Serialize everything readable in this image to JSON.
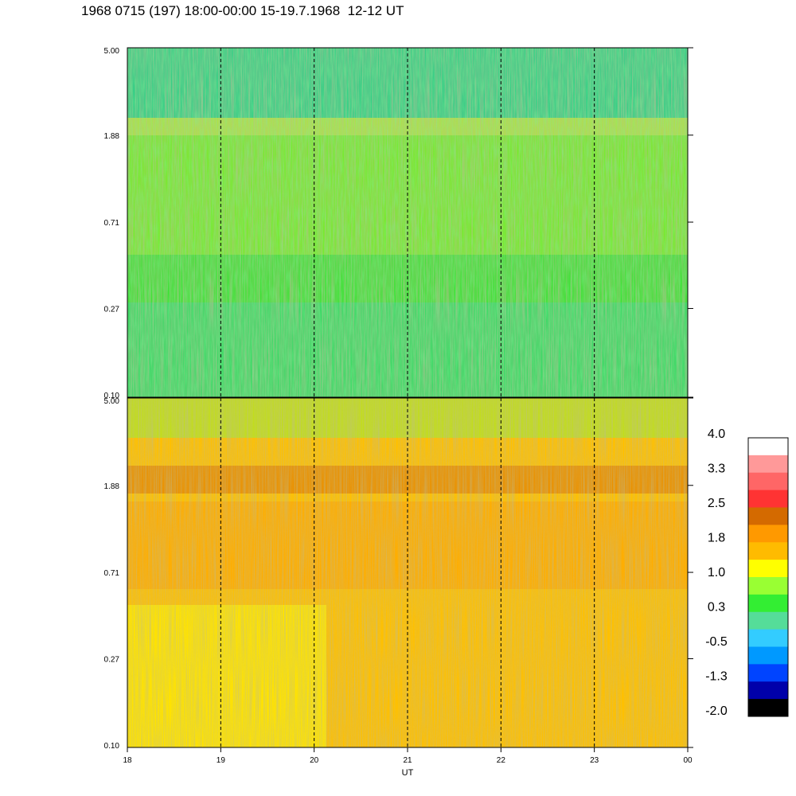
{
  "chart_data": {
    "type": "heatmap",
    "title": "1968 0715 (197) 18:00-00:00 15-19.7.1968  12-12 UT",
    "xlabel": "UT",
    "x_ticks": [
      "18",
      "19",
      "20",
      "21",
      "22",
      "23",
      "00"
    ],
    "x_range_hours": [
      18,
      24
    ],
    "marker_times_hours": [
      19,
      20,
      21,
      22,
      23
    ],
    "y_scale": "log",
    "y_range": [
      0.1,
      5.0
    ],
    "panels": [
      {
        "name": "upper panel",
        "y_ticks": [
          "5.00",
          "1.88",
          "0.71",
          "0.27",
          "0.10"
        ],
        "dominant_levels": "green/cyan (approx -0.5 to 1.0), yellow band near 1.88"
      },
      {
        "name": "lower panel",
        "y_ticks": [
          "5.00",
          "1.88",
          "0.71",
          "0.27",
          "0.10"
        ],
        "dominant_levels": "yellow/orange (approx 1.0 to 2.5), dark-orange band near 1.88"
      }
    ],
    "colorbar": {
      "labels": [
        "4.0",
        "3.3",
        "2.5",
        "1.8",
        "1.0",
        "0.3",
        "-0.5",
        "-1.3",
        "-2.0"
      ],
      "colors": [
        "#ffffff",
        "#ff9999",
        "#ff6666",
        "#ff3333",
        "#d46a00",
        "#ff9900",
        "#ffbb00",
        "#ffff00",
        "#99ff33",
        "#33ee33",
        "#55dd99",
        "#33ccff",
        "#0099ff",
        "#0044ff",
        "#0000aa",
        "#000000"
      ]
    }
  }
}
